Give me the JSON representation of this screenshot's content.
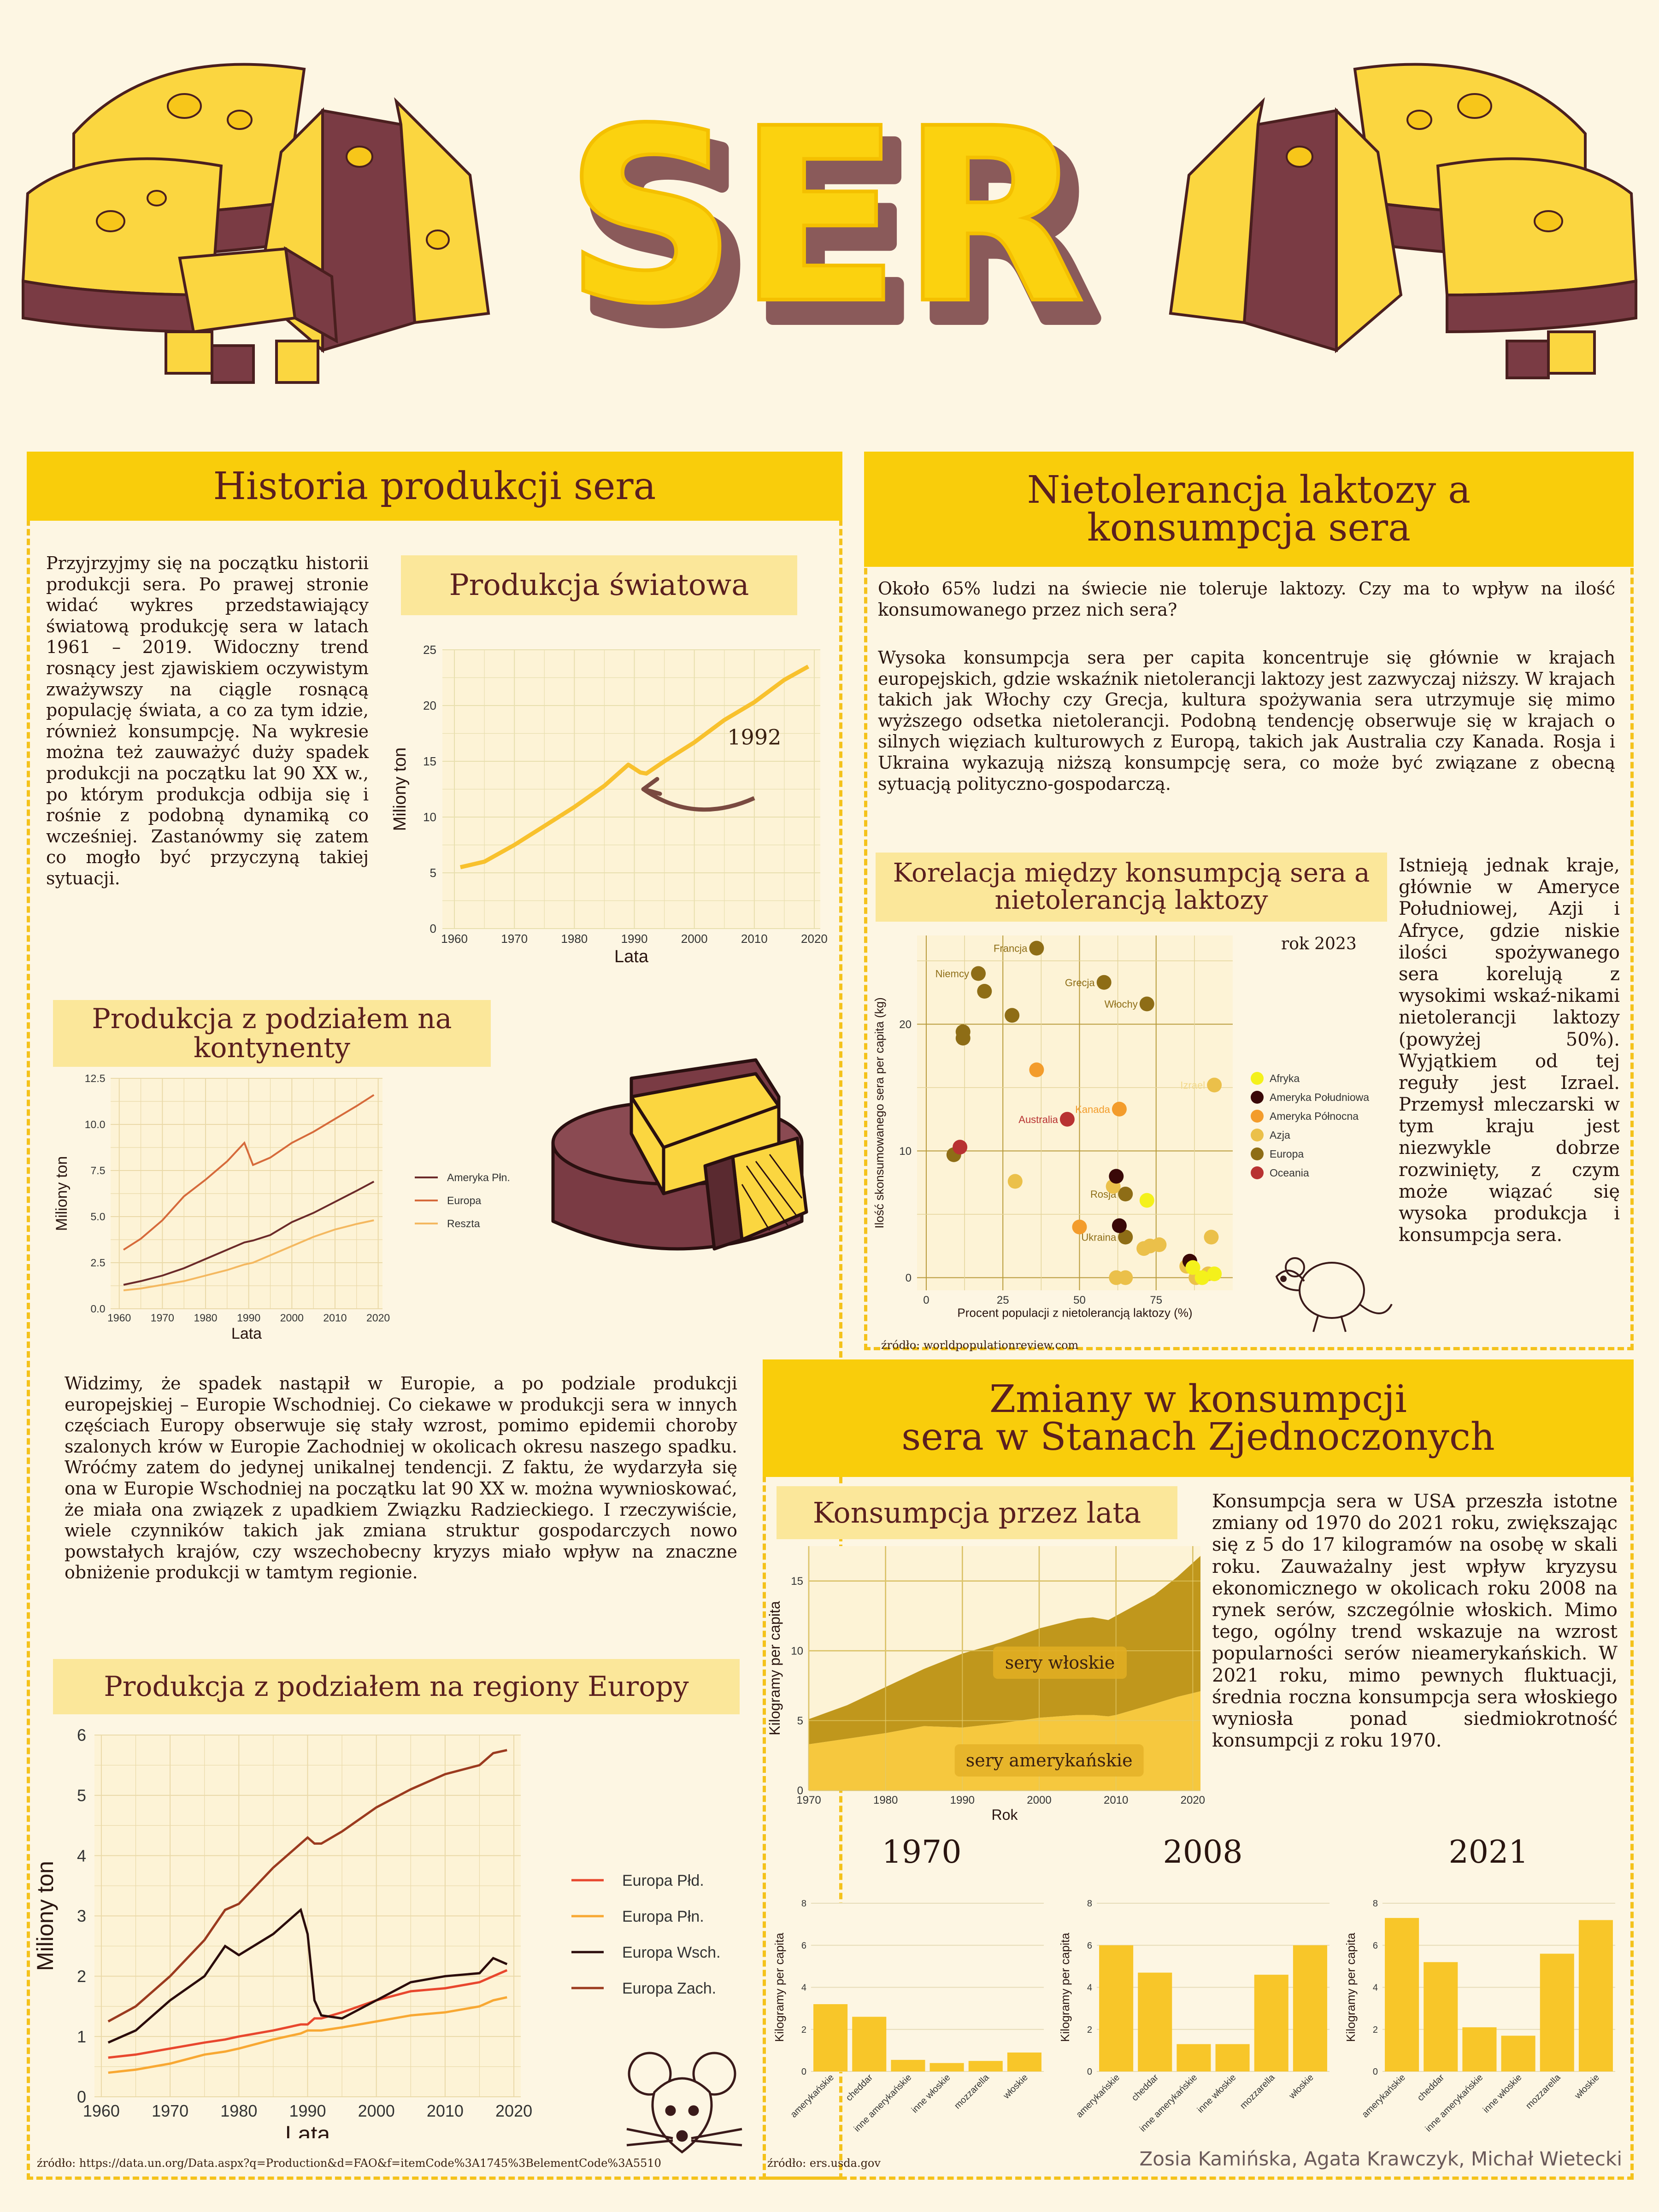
{
  "header": {
    "title": "SER"
  },
  "colors": {
    "yellow": "#f9cd0b",
    "light_yellow": "#fbe79a",
    "maroon": "#7a3b44",
    "brown": "#5a1f1f",
    "bg": "#fdf6e3"
  },
  "history": {
    "title": "Historia produkcji sera",
    "intro": "Przyjrzyjmy się na początku historii produkcji sera. Po prawej stronie widać wykres przedstawiający światową produkcję sera w latach 1961 – 2019. Widoczny trend rosnący jest zjawiskiem oczywistym zważywszy na ciągle rosnącą populację świata, a co za tym idzie, również konsumpcję. Na wykresie można też zauważyć duży spadek produkcji na początku lat 90 XX w., po którym produkcja odbija się i rośnie z podobną dynamiką co wcześniej. Zastanówmy się zatem co mogło być przyczyną takiej sytuacji.",
    "europe_text": "Widzimy, że spadek nastąpił w Europie, a po podziale produkcji europejskiej – Europie Wschodniej. Co ciekawe w produkcji sera w innych częściach Europy obserwuje się stały wzrost, pomimo epidemii choroby szalonych krów w Europie Zachodniej w okolicach okresu naszego spadku. Wróćmy zatem do jedynej unikalnej tendencji. Z faktu, że wydarzyła się ona w Europie Wschodniej na początku lat 90 XX w. można wywnioskować, że miała ona związek z upadkiem Związku Radzieckiego. I rzeczywiście, wiele czynników takich jak zmiana struktur gospodarczych nowo powstałych krajów, czy wszechobecny kryzys miało wpływ na znaczne obniżenie produkcji w tamtym regionie.",
    "source": "źródło: https://data.un.org/Data.aspx?q=Production&d=FAO&f=itemCode%3A1745%3BelementCode%3A5510"
  },
  "lactose": {
    "title_line1": "Nietolerancja laktozy a",
    "title_line2": "konsumpcja sera",
    "p1": "Około 65% ludzi na świecie nie toleruje laktozy. Czy ma to wpływ na ilość konsumowanego przez nich sera?",
    "p2": "Wysoka konsumpcja sera per capita koncentruje się głównie w krajach europejskich, gdzie wskaźnik nietolerancji laktozy jest zazwyczaj niższy. W krajach takich jak Włochy czy Grecja, kultura spożywania sera utrzymuje się mimo wyższego odsetka nietolerancji. Podobną tendencję obserwuje się w krajach o silnych więziach kulturowych z Europą, takich jak Australia czy Kanada. Rosja i Ukraina wykazują niższą konsumpcję sera, co może być związane z obecną sytuacją polityczno-gospodarczą.",
    "side_text": "Istnieją jednak kraje, głównie w Ameryce Południowej, Azji i Afryce, gdzie niskie ilości spożywanego sera korelują z wysokimi wskaź-nikami nietolerancji laktozy (powyżej 50%). Wyjątkiem od tej reguły jest Izrael. Przemysł mleczarski w tym kraju jest niezwykle dobrze rozwinięty, z czym może wiązać się wysoka produkcja i konsumpcja sera.",
    "source": "źródło: worldpopulationreview.com"
  },
  "usa": {
    "title_line1": "Zmiany w konsumpcji",
    "title_line2": "sera w Stanach Zjednoczonych",
    "text": "Konsumpcja sera w USA przeszła istotne zmiany od 1970 do 2021 roku, zwiększając się z 5 do 17 kilogramów na osobę w skali roku. Zauważalny jest wpływ kryzysu ekonomicznego w okolicach roku 2008 na rynek serów, szczególnie włoskich. Mimo tego, ogólny trend wskazuje na wzrost popularności serów nieamerykańskich. W 2021 roku, mimo pewnych fluktuacji, średnia roczna konsumpcja sera włoskiego wyniosła ponad siedmiokrotność konsumpcji z roku 1970.",
    "source": "źródło: ers.usda.gov",
    "authors": "Zosia Kamińska, Agata Krawczyk, Michał Wietecki"
  },
  "chart_data": [
    {
      "id": "world",
      "type": "line",
      "title": "Produkcja światowa",
      "xlabel": "Lata",
      "ylabel": "Miliony ton",
      "xlim": [
        1958,
        2021
      ],
      "ylim": [
        0,
        25
      ],
      "xticks": [
        1960,
        1970,
        1980,
        1990,
        2000,
        2010,
        2020
      ],
      "yticks": [
        0,
        5,
        10,
        15,
        20,
        25
      ],
      "annotation": "1992",
      "x": [
        1961,
        1965,
        1970,
        1975,
        1980,
        1985,
        1989,
        1991,
        1992,
        1995,
        2000,
        2005,
        2010,
        2015,
        2019
      ],
      "values": [
        5.5,
        6.0,
        7.5,
        9.2,
        10.9,
        12.8,
        14.7,
        14.0,
        13.9,
        15.0,
        16.7,
        18.7,
        20.3,
        22.3,
        23.5
      ]
    },
    {
      "id": "continents",
      "type": "line",
      "title": "Produkcja z podziałem na kontynenty",
      "xlabel": "Lata",
      "ylabel": "Miliony ton",
      "xlim": [
        1958,
        2021
      ],
      "ylim": [
        0,
        12.5
      ],
      "xticks": [
        1960,
        1970,
        1980,
        1990,
        2000,
        2010,
        2020
      ],
      "yticks": [
        0.0,
        2.5,
        5.0,
        7.5,
        10.0,
        12.5
      ],
      "legend": "right",
      "x": [
        1961,
        1965,
        1970,
        1975,
        1980,
        1985,
        1989,
        1991,
        1995,
        2000,
        2005,
        2010,
        2015,
        2019
      ],
      "series": [
        {
          "name": "Ameryka Płn.",
          "color": "#6b2a2a",
          "values": [
            1.3,
            1.5,
            1.8,
            2.2,
            2.7,
            3.2,
            3.6,
            3.7,
            4.0,
            4.7,
            5.2,
            5.8,
            6.4,
            6.9
          ]
        },
        {
          "name": "Europa",
          "color": "#d66a3b",
          "values": [
            3.2,
            3.8,
            4.8,
            6.1,
            7.0,
            8.0,
            9.0,
            7.8,
            8.2,
            9.0,
            9.6,
            10.3,
            11.0,
            11.6
          ]
        },
        {
          "name": "Reszta",
          "color": "#f4b860",
          "values": [
            1.0,
            1.1,
            1.3,
            1.5,
            1.8,
            2.1,
            2.4,
            2.5,
            2.9,
            3.4,
            3.9,
            4.3,
            4.6,
            4.8
          ]
        }
      ]
    },
    {
      "id": "regions",
      "type": "line",
      "title": "Produkcja z podziałem na regiony Europy",
      "xlabel": "Lata",
      "ylabel": "Miliony ton",
      "xlim": [
        1959,
        2021
      ],
      "ylim": [
        0,
        6
      ],
      "xticks": [
        1960,
        1970,
        1980,
        1990,
        2000,
        2010,
        2020
      ],
      "yticks": [
        0,
        1,
        2,
        3,
        4,
        5,
        6
      ],
      "legend": "right",
      "x": [
        1961,
        1965,
        1970,
        1975,
        1978,
        1980,
        1985,
        1989,
        1990,
        1991,
        1992,
        1995,
        2000,
        2005,
        2010,
        2015,
        2017,
        2019
      ],
      "series": [
        {
          "name": "Europa Płd.",
          "color": "#e8472e",
          "values": [
            0.65,
            0.7,
            0.8,
            0.9,
            0.95,
            1.0,
            1.1,
            1.2,
            1.2,
            1.3,
            1.3,
            1.4,
            1.6,
            1.75,
            1.8,
            1.9,
            2.0,
            2.1
          ]
        },
        {
          "name": "Europa Płn.",
          "color": "#f8a833",
          "values": [
            0.4,
            0.45,
            0.55,
            0.7,
            0.75,
            0.8,
            0.95,
            1.05,
            1.1,
            1.1,
            1.1,
            1.15,
            1.25,
            1.35,
            1.4,
            1.5,
            1.6,
            1.65
          ]
        },
        {
          "name": "Europa Wsch.",
          "color": "#2b0c0c",
          "values": [
            0.9,
            1.1,
            1.6,
            2.0,
            2.5,
            2.35,
            2.7,
            3.1,
            2.7,
            1.6,
            1.35,
            1.3,
            1.6,
            1.9,
            2.0,
            2.05,
            2.3,
            2.2
          ]
        },
        {
          "name": "Europa Zach.",
          "color": "#9b3a1f",
          "values": [
            1.25,
            1.5,
            2.0,
            2.6,
            3.1,
            3.2,
            3.8,
            4.2,
            4.3,
            4.2,
            4.2,
            4.4,
            4.8,
            5.1,
            5.35,
            5.5,
            5.7,
            5.75
          ]
        }
      ]
    },
    {
      "id": "scatter",
      "type": "scatter",
      "title": "Korelacja między konsumpcją sera a nietolerancją laktozy",
      "subtitle": "rok 2023",
      "xlabel": "Procent populacji z nietolerancją laktozy (%)",
      "ylabel": "Ilość skonsumowanego sera per capita (kg)",
      "xlim": [
        -3,
        100
      ],
      "ylim": [
        -1,
        27
      ],
      "xticks": [
        0,
        25,
        50,
        75
      ],
      "yticks": [
        0,
        10,
        20
      ],
      "legend": "right",
      "groups": [
        {
          "name": "Afryka",
          "color": "#f4f11b"
        },
        {
          "name": "Ameryka Południowa",
          "color": "#3a0808"
        },
        {
          "name": "Ameryka Północna",
          "color": "#f39c2c"
        },
        {
          "name": "Azja",
          "color": "#ebc04a"
        },
        {
          "name": "Europa",
          "color": "#8e6d16"
        },
        {
          "name": "Oceania",
          "color": "#b83232"
        }
      ],
      "points": [
        {
          "x": 36,
          "y": 26.0,
          "g": "Europa",
          "label": "Francja"
        },
        {
          "x": 17,
          "y": 24.0,
          "g": "Europa",
          "label": "Niemcy"
        },
        {
          "x": 19,
          "y": 22.6,
          "g": "Europa"
        },
        {
          "x": 12,
          "y": 19.4,
          "g": "Europa"
        },
        {
          "x": 12,
          "y": 18.9,
          "g": "Europa"
        },
        {
          "x": 28,
          "y": 20.7,
          "g": "Europa"
        },
        {
          "x": 58,
          "y": 23.3,
          "g": "Europa",
          "label": "Grecja"
        },
        {
          "x": 72,
          "y": 21.6,
          "g": "Europa",
          "label": "Włochy"
        },
        {
          "x": 9,
          "y": 9.7,
          "g": "Europa"
        },
        {
          "x": 65,
          "y": 6.6,
          "g": "Europa",
          "label": "Rosja"
        },
        {
          "x": 65,
          "y": 3.2,
          "g": "Europa",
          "label": "Ukraina"
        },
        {
          "x": 36,
          "y": 16.4,
          "g": "Ameryka Północna"
        },
        {
          "x": 63,
          "y": 13.3,
          "g": "Ameryka Północna",
          "label": "Kanada"
        },
        {
          "x": 50,
          "y": 4.0,
          "g": "Ameryka Północna"
        },
        {
          "x": 11,
          "y": 10.3,
          "g": "Oceania"
        },
        {
          "x": 46,
          "y": 12.5,
          "g": "Oceania",
          "label": "Australia"
        },
        {
          "x": 94,
          "y": 15.2,
          "g": "Azja",
          "label": "Izrael"
        },
        {
          "x": 29,
          "y": 7.6,
          "g": "Azja"
        },
        {
          "x": 61,
          "y": 7.2,
          "g": "Azja"
        },
        {
          "x": 73,
          "y": 2.5,
          "g": "Azja"
        },
        {
          "x": 76,
          "y": 2.6,
          "g": "Azja"
        },
        {
          "x": 71,
          "y": 2.3,
          "g": "Azja"
        },
        {
          "x": 93,
          "y": 3.2,
          "g": "Azja"
        },
        {
          "x": 62,
          "y": 0.0,
          "g": "Azja"
        },
        {
          "x": 65,
          "y": 0.0,
          "g": "Azja"
        },
        {
          "x": 88,
          "y": 0.0,
          "g": "Azja"
        },
        {
          "x": 92,
          "y": 0.3,
          "g": "Azja"
        },
        {
          "x": 85,
          "y": 0.9,
          "g": "Azja"
        },
        {
          "x": 62,
          "y": 8.0,
          "g": "Ameryka Południowa"
        },
        {
          "x": 63,
          "y": 4.1,
          "g": "Ameryka Południowa"
        },
        {
          "x": 86,
          "y": 1.3,
          "g": "Ameryka Południowa"
        },
        {
          "x": 72,
          "y": 6.1,
          "g": "Afryka"
        },
        {
          "x": 87,
          "y": 0.8,
          "g": "Afryka"
        },
        {
          "x": 90,
          "y": 0.0,
          "g": "Afryka"
        },
        {
          "x": 94,
          "y": 0.3,
          "g": "Afryka"
        }
      ]
    },
    {
      "id": "usa_area",
      "type": "area",
      "title": "Konsumpcja przez lata",
      "xlabel": "Rok",
      "ylabel": "Kilogramy per capita",
      "xlim": [
        1970,
        2021
      ],
      "ylim": [
        0,
        17.5
      ],
      "xticks": [
        1970,
        1980,
        1990,
        2000,
        2010,
        2020
      ],
      "yticks": [
        0,
        5,
        10,
        15
      ],
      "x": [
        1970,
        1975,
        1980,
        1985,
        1990,
        1995,
        2000,
        2005,
        2007,
        2009,
        2010,
        2015,
        2018,
        2021
      ],
      "series": [
        {
          "name": "sery amerykańskie",
          "color": "#f5c431",
          "values": [
            3.3,
            3.7,
            4.1,
            4.6,
            4.5,
            4.8,
            5.2,
            5.4,
            5.4,
            5.3,
            5.4,
            6.2,
            6.7,
            7.1
          ]
        },
        {
          "name": "sery włoskie",
          "color": "#bb8f0c",
          "values": [
            1.8,
            2.4,
            3.3,
            4.1,
            5.3,
            5.8,
            6.4,
            6.9,
            7.0,
            6.9,
            7.1,
            7.8,
            8.6,
            9.7
          ]
        }
      ]
    },
    {
      "id": "bars_1970",
      "type": "bar",
      "title": "1970",
      "ylabel": "Kilogramy per capita",
      "ylim": [
        0,
        8
      ],
      "yticks": [
        0,
        2,
        4,
        6,
        8
      ],
      "categories": [
        "amerykańskie",
        "cheddar",
        "inne amerykańskie",
        "inne włoskie",
        "mozzarella",
        "włoskie"
      ],
      "values": [
        3.2,
        2.6,
        0.55,
        0.4,
        0.5,
        0.9
      ]
    },
    {
      "id": "bars_2008",
      "type": "bar",
      "title": "2008",
      "ylabel": "Kilogramy per capita",
      "ylim": [
        0,
        8
      ],
      "yticks": [
        0,
        2,
        4,
        6,
        8
      ],
      "categories": [
        "amerykańskie",
        "cheddar",
        "inne amerykańskie",
        "inne włoskie",
        "mozzarella",
        "włoskie"
      ],
      "values": [
        6.0,
        4.7,
        1.3,
        1.3,
        4.6,
        6.0
      ]
    },
    {
      "id": "bars_2021",
      "type": "bar",
      "title": "2021",
      "ylabel": "Kilogramy per capita",
      "ylim": [
        0,
        8
      ],
      "yticks": [
        0,
        2,
        4,
        6,
        8
      ],
      "categories": [
        "amerykańskie",
        "cheddar",
        "inne amerykańskie",
        "inne włoskie",
        "mozzarella",
        "włoskie"
      ],
      "values": [
        7.3,
        5.2,
        2.1,
        1.7,
        5.6,
        7.2
      ]
    }
  ]
}
